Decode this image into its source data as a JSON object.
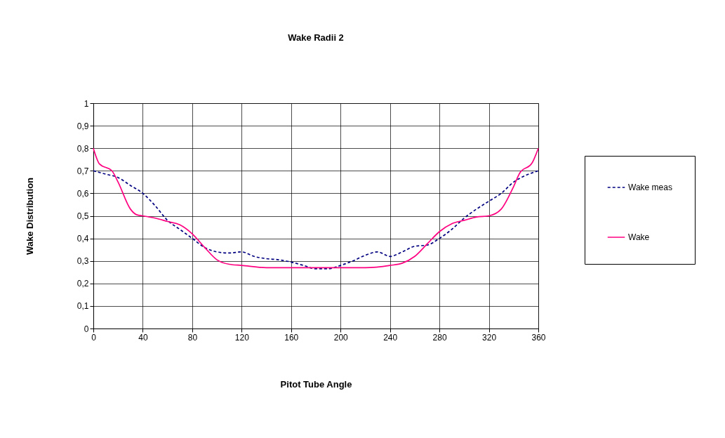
{
  "chart_data": {
    "type": "line",
    "title": "Wake Radii 2",
    "xlabel": "Pitot Tube Angle",
    "ylabel": "Wake Distribution",
    "xlim": [
      0,
      360
    ],
    "xticks": [
      0,
      40,
      80,
      120,
      160,
      200,
      240,
      280,
      320,
      360
    ],
    "ylim": [
      0,
      1
    ],
    "yticks": [
      0,
      {
        "value": 0.1,
        "label": "0,1"
      },
      {
        "value": 0.2,
        "label": "0,2"
      },
      {
        "value": 0.3,
        "label": "0,3"
      },
      {
        "value": 0.4,
        "label": "0,4"
      },
      {
        "value": 0.5,
        "label": "0,5"
      },
      {
        "value": 0.6,
        "label": "0,6"
      },
      {
        "value": 0.7,
        "label": "0,7"
      },
      {
        "value": 0.8,
        "label": "0,8"
      },
      {
        "value": 0.9,
        "label": "0,9"
      },
      1
    ],
    "grid": true,
    "legend": "right",
    "marker": "none",
    "series": [
      {
        "name": "Wake meas",
        "color": "#000080",
        "line_style": "dashed",
        "x": [
          0,
          10,
          20,
          30,
          40,
          50,
          60,
          70,
          80,
          90,
          100,
          110,
          120,
          130,
          140,
          150,
          160,
          170,
          180,
          190,
          200,
          210,
          220,
          230,
          240,
          250,
          260,
          270,
          280,
          290,
          300,
          310,
          320,
          330,
          340,
          350,
          360
        ],
        "values": [
          0.7,
          0.685,
          0.67,
          0.635,
          0.6,
          0.545,
          0.48,
          0.44,
          0.4,
          0.36,
          0.34,
          0.335,
          0.34,
          0.32,
          0.31,
          0.305,
          0.295,
          0.28,
          0.265,
          0.265,
          0.28,
          0.3,
          0.325,
          0.34,
          0.32,
          0.34,
          0.365,
          0.37,
          0.4,
          0.44,
          0.49,
          0.53,
          0.565,
          0.6,
          0.65,
          0.68,
          0.7
        ]
      },
      {
        "name": "Wake",
        "color": "#ff0080",
        "line_style": "solid",
        "x": [
          0,
          5,
          15,
          20,
          30,
          35,
          40,
          50,
          60,
          70,
          80,
          90,
          100,
          110,
          120,
          140,
          160,
          180,
          200,
          220,
          240,
          250,
          260,
          270,
          280,
          290,
          300,
          310,
          320,
          330,
          340,
          345,
          355,
          360
        ],
        "values": [
          0.8,
          0.73,
          0.7,
          0.65,
          0.53,
          0.505,
          0.5,
          0.49,
          0.475,
          0.46,
          0.42,
          0.36,
          0.305,
          0.285,
          0.28,
          0.27,
          0.27,
          0.27,
          0.27,
          0.27,
          0.28,
          0.29,
          0.32,
          0.375,
          0.43,
          0.465,
          0.48,
          0.495,
          0.5,
          0.53,
          0.63,
          0.69,
          0.735,
          0.8
        ]
      }
    ]
  }
}
